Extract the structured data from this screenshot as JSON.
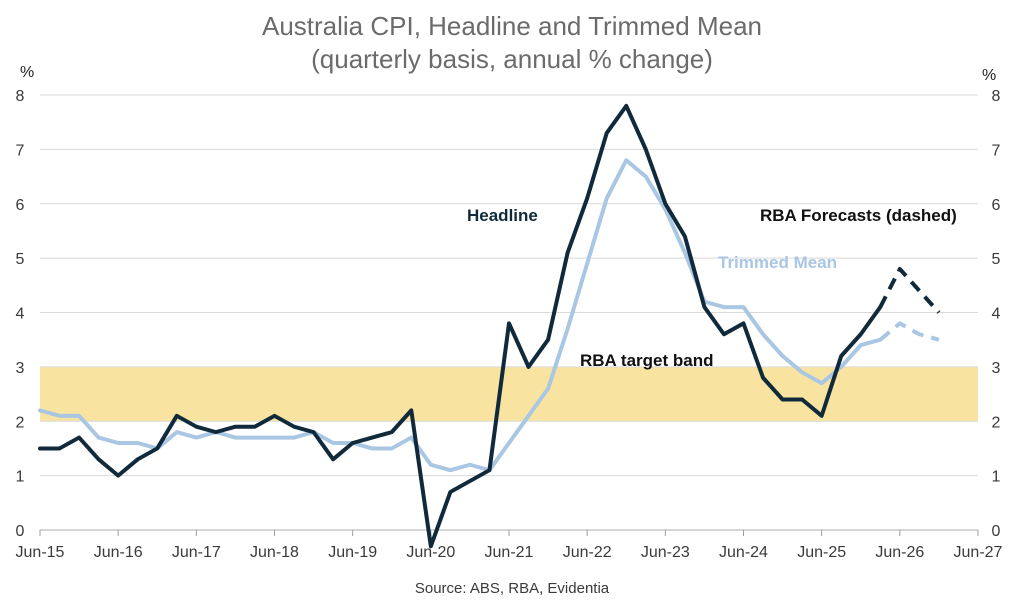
{
  "chart_data": {
    "type": "line",
    "title": "Australia CPI, Headline and Trimmed Mean",
    "subtitle": "(quarterly basis, annual % change)",
    "ylabel_left": "%",
    "ylabel_right": "%",
    "ylim": [
      0,
      8
    ],
    "yticks": [
      0,
      1,
      2,
      3,
      4,
      5,
      6,
      7,
      8
    ],
    "x_ticks": [
      "Jun-15",
      "Jun-16",
      "Jun-17",
      "Jun-18",
      "Jun-19",
      "Jun-20",
      "Jun-21",
      "Jun-22",
      "Jun-23",
      "Jun-24",
      "Jun-25",
      "Jun-26",
      "Jun-27"
    ],
    "x_start": "Jun-15",
    "target_band": {
      "low": 2,
      "high": 3,
      "label": "RBA target band",
      "color": "#f8e4a0"
    },
    "series": [
      {
        "name": "Headline",
        "color": "#102a3c",
        "values": [
          1.5,
          1.5,
          1.7,
          1.3,
          1.0,
          1.3,
          1.5,
          2.1,
          1.9,
          1.8,
          1.9,
          1.9,
          2.1,
          1.9,
          1.8,
          1.3,
          1.6,
          1.7,
          1.8,
          2.2,
          -0.3,
          0.7,
          0.9,
          1.1,
          3.8,
          3.0,
          3.5,
          5.1,
          6.1,
          7.3,
          7.8,
          7.0,
          6.0,
          5.4,
          4.1,
          3.6,
          3.8,
          2.8,
          2.4,
          2.4,
          2.1,
          3.2,
          3.6,
          4.1
        ],
        "forecast": [
          4.1,
          4.8,
          4.4,
          4.0
        ]
      },
      {
        "name": "Trimmed Mean",
        "color": "#a9c6e3",
        "values": [
          2.2,
          2.1,
          2.1,
          1.7,
          1.6,
          1.6,
          1.5,
          1.8,
          1.7,
          1.8,
          1.7,
          1.7,
          1.7,
          1.7,
          1.8,
          1.6,
          1.6,
          1.5,
          1.5,
          1.7,
          1.2,
          1.1,
          1.2,
          1.1,
          1.6,
          2.1,
          2.6,
          3.7,
          4.9,
          6.1,
          6.8,
          6.5,
          5.9,
          5.1,
          4.2,
          4.1,
          4.1,
          3.6,
          3.2,
          2.9,
          2.7,
          3.0,
          3.4,
          3.5
        ],
        "forecast": [
          3.5,
          3.8,
          3.6,
          3.5
        ]
      }
    ],
    "annotations": {
      "headline_label": "Headline",
      "trimmed_label": "Trimmed Mean",
      "forecast_label": "RBA Forecasts (dashed)"
    },
    "source": "Source: ABS, RBA, Evidentia"
  }
}
